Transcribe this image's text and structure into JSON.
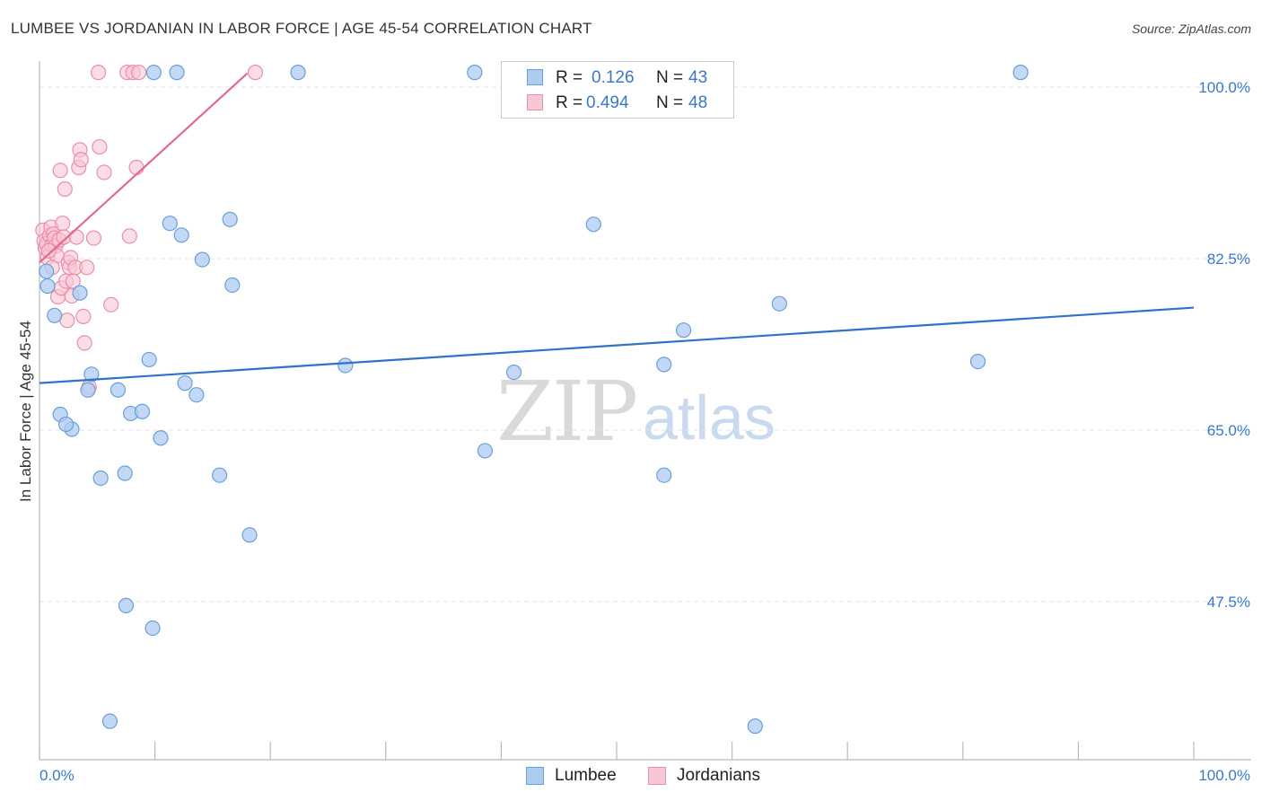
{
  "header": {
    "title": "LUMBEE VS JORDANIAN IN LABOR FORCE | AGE 45-54 CORRELATION CHART",
    "source": "Source: ZipAtlas.com"
  },
  "watermark": {
    "zip": "ZIP",
    "atlas": "atlas"
  },
  "legend": {
    "rows": [
      {
        "r_label": "R =",
        "r_value": "0.126",
        "n_label": "N =",
        "n_value": "43",
        "color": "#aecbf0",
        "border": "#6a9fdc"
      },
      {
        "r_label": "R =",
        "r_value": "0.494",
        "n_label": "N =",
        "n_value": "48",
        "color": "#f9c6d4",
        "border": "#e98fab"
      }
    ]
  },
  "bottom_legend": {
    "lumbee": "Lumbee",
    "jordanians": "Jordanians"
  },
  "axes": {
    "x_left_label": "0.0%",
    "x_right_label": "100.0%",
    "y_label": "In Labor Force | Age 45-54",
    "y_ticks": [
      "100.0%",
      "82.5%",
      "65.0%",
      "47.5%"
    ]
  },
  "colors": {
    "lumbee_fill": "#aecbf0",
    "lumbee_stroke": "#6a9fdc",
    "lumbee_line": "#2f72c8",
    "jordanian_fill": "#f9c6d4",
    "jordanian_stroke": "#e98fab",
    "jordanian_line": "#e26a90",
    "tick_label": "#3a78c9",
    "grid": "#e3e3e3"
  },
  "chart_data": {
    "type": "scatter",
    "title": "LUMBEE VS JORDANIAN IN LABOR FORCE | AGE 45-54 CORRELATION CHART",
    "xlabel": "",
    "ylabel": "In Labor Force | Age 45-54",
    "xlim": [
      0,
      100
    ],
    "ylim": [
      33.0,
      101.5
    ],
    "grid": true,
    "y_gridlines": [
      100.0,
      82.5,
      65.0,
      47.5
    ],
    "legend_placement": "top-center",
    "series": [
      {
        "name": "Lumbee",
        "r": 0.126,
        "n": 43,
        "trend": {
          "x": [
            0,
            100
          ],
          "y": [
            69.8,
            77.5
          ]
        },
        "points": [
          {
            "x": 0.6,
            "y": 81.2
          },
          {
            "x": 0.7,
            "y": 79.7
          },
          {
            "x": 1.3,
            "y": 76.7
          },
          {
            "x": 1.8,
            "y": 66.6
          },
          {
            "x": 2.8,
            "y": 65.1
          },
          {
            "x": 3.5,
            "y": 79.0
          },
          {
            "x": 2.3,
            "y": 65.6
          },
          {
            "x": 4.2,
            "y": 69.1
          },
          {
            "x": 4.5,
            "y": 70.7
          },
          {
            "x": 6.8,
            "y": 69.1
          },
          {
            "x": 5.3,
            "y": 60.1
          },
          {
            "x": 7.4,
            "y": 60.6
          },
          {
            "x": 7.9,
            "y": 66.7
          },
          {
            "x": 8.9,
            "y": 66.9
          },
          {
            "x": 9.5,
            "y": 72.2
          },
          {
            "x": 11.3,
            "y": 86.1
          },
          {
            "x": 12.3,
            "y": 84.9
          },
          {
            "x": 10.5,
            "y": 64.2
          },
          {
            "x": 12.6,
            "y": 69.8
          },
          {
            "x": 13.6,
            "y": 68.6
          },
          {
            "x": 14.1,
            "y": 82.4
          },
          {
            "x": 15.6,
            "y": 60.4
          },
          {
            "x": 16.5,
            "y": 86.5
          },
          {
            "x": 16.7,
            "y": 79.8
          },
          {
            "x": 18.2,
            "y": 54.3
          },
          {
            "x": 7.5,
            "y": 47.1
          },
          {
            "x": 9.8,
            "y": 44.8
          },
          {
            "x": 6.1,
            "y": 35.3
          },
          {
            "x": 9.9,
            "y": 101.5
          },
          {
            "x": 22.4,
            "y": 101.5
          },
          {
            "x": 26.5,
            "y": 71.6
          },
          {
            "x": 37.7,
            "y": 101.5
          },
          {
            "x": 38.6,
            "y": 62.9
          },
          {
            "x": 41.1,
            "y": 70.9
          },
          {
            "x": 48.0,
            "y": 86.0
          },
          {
            "x": 54.1,
            "y": 71.7
          },
          {
            "x": 54.1,
            "y": 60.4
          },
          {
            "x": 55.8,
            "y": 75.2
          },
          {
            "x": 62.0,
            "y": 34.8
          },
          {
            "x": 64.1,
            "y": 77.9
          },
          {
            "x": 81.3,
            "y": 72.0
          },
          {
            "x": 85.0,
            "y": 101.5
          },
          {
            "x": 11.9,
            "y": 101.5
          }
        ]
      },
      {
        "name": "Jordanians",
        "r": 0.494,
        "n": 48,
        "trend": {
          "x": [
            0,
            18.0
          ],
          "y": [
            82.1,
            101.4
          ]
        },
        "points": [
          {
            "x": 0.3,
            "y": 85.4
          },
          {
            "x": 0.4,
            "y": 84.3
          },
          {
            "x": 0.5,
            "y": 83.6
          },
          {
            "x": 0.6,
            "y": 84.0
          },
          {
            "x": 0.7,
            "y": 82.6
          },
          {
            "x": 0.9,
            "y": 84.9
          },
          {
            "x": 1.0,
            "y": 85.7
          },
          {
            "x": 1.1,
            "y": 83.9
          },
          {
            "x": 1.2,
            "y": 85.0
          },
          {
            "x": 1.3,
            "y": 84.6
          },
          {
            "x": 1.4,
            "y": 83.8
          },
          {
            "x": 1.5,
            "y": 82.8
          },
          {
            "x": 1.6,
            "y": 78.6
          },
          {
            "x": 1.7,
            "y": 84.4
          },
          {
            "x": 1.8,
            "y": 91.5
          },
          {
            "x": 1.9,
            "y": 79.5
          },
          {
            "x": 2.0,
            "y": 86.1
          },
          {
            "x": 2.1,
            "y": 84.7
          },
          {
            "x": 2.2,
            "y": 89.6
          },
          {
            "x": 2.3,
            "y": 80.2
          },
          {
            "x": 2.4,
            "y": 76.2
          },
          {
            "x": 2.5,
            "y": 82.1
          },
          {
            "x": 2.6,
            "y": 81.6
          },
          {
            "x": 2.7,
            "y": 82.6
          },
          {
            "x": 2.8,
            "y": 78.7
          },
          {
            "x": 2.9,
            "y": 80.2
          },
          {
            "x": 3.1,
            "y": 81.6
          },
          {
            "x": 3.2,
            "y": 84.7
          },
          {
            "x": 3.4,
            "y": 91.8
          },
          {
            "x": 3.5,
            "y": 93.6
          },
          {
            "x": 3.6,
            "y": 92.6
          },
          {
            "x": 3.8,
            "y": 76.6
          },
          {
            "x": 3.9,
            "y": 73.9
          },
          {
            "x": 4.1,
            "y": 81.6
          },
          {
            "x": 4.3,
            "y": 69.4
          },
          {
            "x": 4.7,
            "y": 84.6
          },
          {
            "x": 5.2,
            "y": 93.9
          },
          {
            "x": 5.6,
            "y": 91.3
          },
          {
            "x": 6.2,
            "y": 77.8
          },
          {
            "x": 7.8,
            "y": 84.8
          },
          {
            "x": 8.4,
            "y": 91.8
          },
          {
            "x": 5.1,
            "y": 101.5
          },
          {
            "x": 7.6,
            "y": 101.5
          },
          {
            "x": 8.1,
            "y": 101.5
          },
          {
            "x": 8.6,
            "y": 101.5
          },
          {
            "x": 18.7,
            "y": 101.5
          },
          {
            "x": 1.1,
            "y": 81.6
          },
          {
            "x": 0.8,
            "y": 83.3
          }
        ]
      }
    ]
  }
}
